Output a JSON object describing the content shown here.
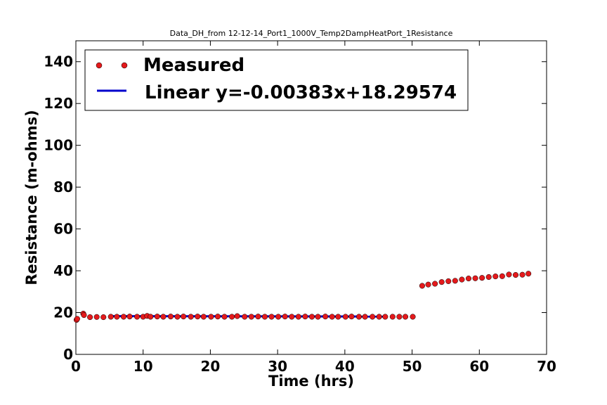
{
  "chart_data": {
    "type": "scatter",
    "title": "Data_DH_from 12-12-14_Port1_1000V_Temp2DampHeatPort_1Resistance",
    "xlabel": "Time (hrs)",
    "ylabel": "Resistance (m-ohms)",
    "xlim": [
      0,
      70
    ],
    "ylim": [
      0,
      150
    ],
    "xticks": [
      0,
      10,
      20,
      30,
      40,
      50,
      60,
      70
    ],
    "yticks": [
      0,
      20,
      40,
      60,
      80,
      100,
      120,
      140
    ],
    "legend_position": "top-left",
    "series": [
      {
        "name": "Measured",
        "kind": "scatter",
        "color": "#e41a1c",
        "points": [
          [
            0.1,
            16.5
          ],
          [
            0.2,
            17.0
          ],
          [
            1.1,
            19.5
          ],
          [
            1.2,
            18.8
          ],
          [
            2.1,
            17.8
          ],
          [
            3.1,
            17.9
          ],
          [
            4.1,
            17.8
          ],
          [
            5.2,
            18.0
          ],
          [
            6.1,
            18.0
          ],
          [
            7.1,
            18.0
          ],
          [
            8.0,
            18.1
          ],
          [
            9.1,
            18.0
          ],
          [
            10.0,
            18.0
          ],
          [
            10.6,
            18.4
          ],
          [
            11.1,
            18.0
          ],
          [
            12.1,
            18.1
          ],
          [
            13.0,
            18.0
          ],
          [
            14.1,
            18.1
          ],
          [
            15.1,
            18.0
          ],
          [
            16.0,
            18.1
          ],
          [
            17.1,
            18.0
          ],
          [
            18.1,
            18.1
          ],
          [
            19.0,
            18.0
          ],
          [
            20.1,
            18.0
          ],
          [
            21.1,
            18.1
          ],
          [
            22.1,
            18.0
          ],
          [
            23.2,
            18.0
          ],
          [
            24.0,
            18.3
          ],
          [
            25.1,
            18.0
          ],
          [
            26.1,
            18.0
          ],
          [
            27.1,
            18.1
          ],
          [
            28.1,
            18.0
          ],
          [
            29.1,
            18.0
          ],
          [
            30.1,
            18.0
          ],
          [
            31.1,
            18.1
          ],
          [
            32.1,
            18.0
          ],
          [
            33.1,
            18.0
          ],
          [
            34.1,
            18.1
          ],
          [
            35.1,
            18.0
          ],
          [
            36.0,
            18.0
          ],
          [
            37.1,
            18.1
          ],
          [
            38.1,
            18.0
          ],
          [
            39.0,
            18.0
          ],
          [
            40.1,
            18.0
          ],
          [
            41.0,
            18.1
          ],
          [
            42.1,
            18.0
          ],
          [
            43.0,
            18.0
          ],
          [
            44.1,
            18.0
          ],
          [
            45.1,
            18.0
          ],
          [
            46.0,
            18.0
          ],
          [
            47.1,
            18.0
          ],
          [
            48.1,
            18.0
          ],
          [
            49.0,
            18.0
          ],
          [
            50.1,
            18.0
          ],
          [
            51.5,
            32.8
          ],
          [
            52.4,
            33.4
          ],
          [
            53.4,
            33.8
          ],
          [
            54.4,
            34.6
          ],
          [
            55.4,
            35.0
          ],
          [
            56.4,
            35.2
          ],
          [
            57.4,
            35.8
          ],
          [
            58.4,
            36.3
          ],
          [
            59.4,
            36.4
          ],
          [
            60.4,
            36.6
          ],
          [
            61.4,
            37.0
          ],
          [
            62.4,
            37.3
          ],
          [
            63.4,
            37.4
          ],
          [
            64.4,
            38.2
          ],
          [
            65.4,
            38.0
          ],
          [
            66.4,
            38.1
          ],
          [
            67.3,
            38.6
          ]
        ]
      },
      {
        "name": "Linear y=-0.00383x+18.29574",
        "kind": "line",
        "color": "#0000cc",
        "slope": -0.00383,
        "intercept": 18.29574,
        "x_range": [
          5,
          46
        ]
      }
    ]
  }
}
